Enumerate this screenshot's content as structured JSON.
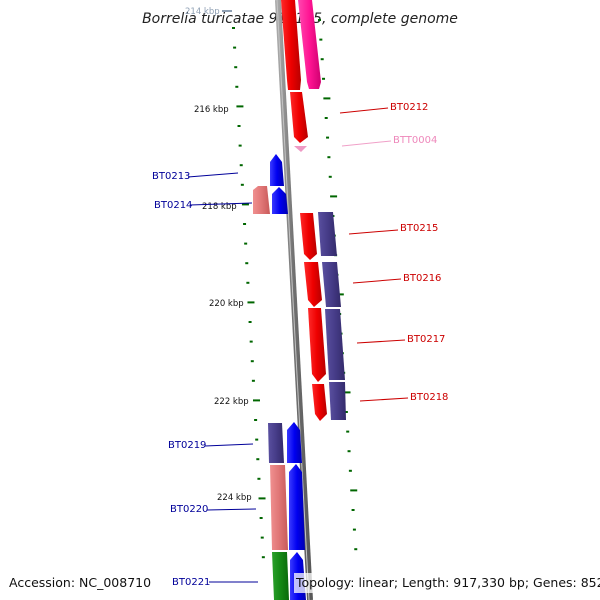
{
  "title": "Borrelia turicatae 91E135, complete genome",
  "footer": {
    "accession": "Accession: NC_008710",
    "topology": "Topology: linear; Length: 917,330 bp; Genes: 852"
  },
  "ruler": {
    "faded_label": "214 kbp",
    "labels": [
      "216 kbp",
      "218 kbp",
      "220 kbp",
      "222 kbp",
      "224 kbp"
    ]
  },
  "genes": [
    {
      "id": "BT0212",
      "color": "#cc0000",
      "strand": "forward"
    },
    {
      "id": "BTT0004",
      "color": "#ee88bb",
      "strand": "forward"
    },
    {
      "id": "BT0213",
      "color": "#000099",
      "strand": "reverse"
    },
    {
      "id": "BT0214",
      "color": "#000099",
      "strand": "reverse"
    },
    {
      "id": "BT0215",
      "color": "#cc0000",
      "strand": "forward"
    },
    {
      "id": "BT0216",
      "color": "#cc0000",
      "strand": "forward"
    },
    {
      "id": "BT0217",
      "color": "#cc0000",
      "strand": "forward"
    },
    {
      "id": "BT0218",
      "color": "#cc0000",
      "strand": "forward"
    },
    {
      "id": "BT0219",
      "color": "#000099",
      "strand": "reverse"
    },
    {
      "id": "BT0220",
      "color": "#000099",
      "strand": "reverse"
    },
    {
      "id": "BT0221",
      "color": "#000099",
      "strand": "reverse"
    }
  ],
  "colors": {
    "backbone": "#808080",
    "forward_cds": "#ff0000",
    "reverse_cds": "#0000ff",
    "forward_cog": "#4a3f8a",
    "reverse_cog": "#e87a7a",
    "pink_cds": "#ff1493",
    "green_cds": "#118811",
    "ticks": "#006600"
  }
}
